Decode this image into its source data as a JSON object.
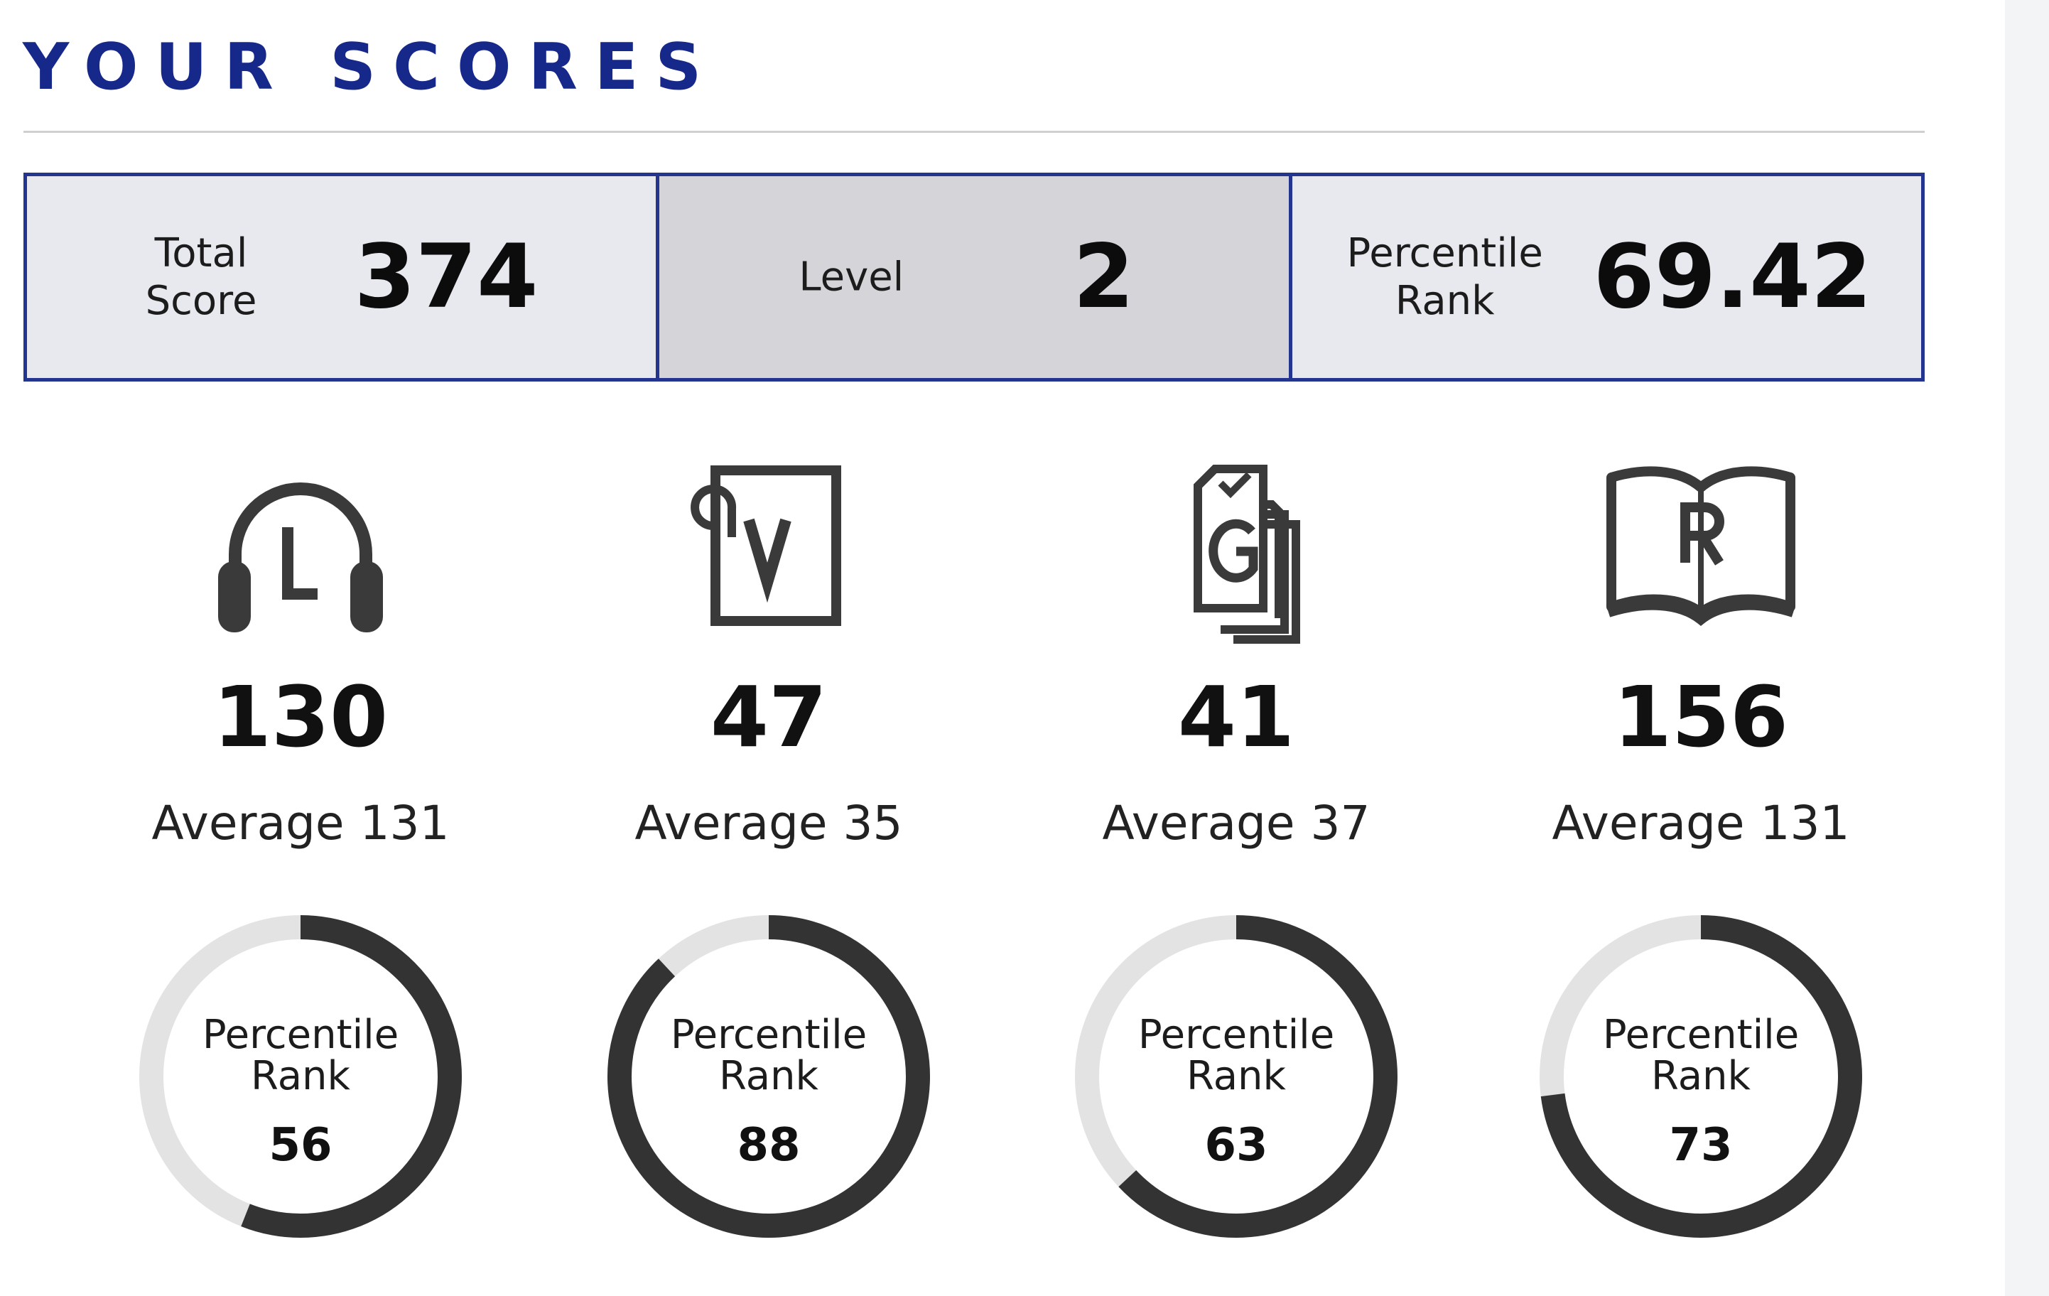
{
  "heading": "YOUR SCORES",
  "summary": {
    "total_score_label": "Total\nScore",
    "total_score_value": "374",
    "level_label": "Level",
    "level_value": "2",
    "percentile_label": "Percentile\nRank",
    "percentile_value": "69.42"
  },
  "sections": [
    {
      "icon": "headphones-l-icon",
      "score": "130",
      "average_label": "Average",
      "average_value": "131",
      "percentile_label": "Percentile\nRank",
      "percentile_value": "56",
      "percentile_fraction": 0.56
    },
    {
      "icon": "document-v-icon",
      "score": "47",
      "average_label": "Average",
      "average_value": "35",
      "percentile_label": "Percentile\nRank",
      "percentile_value": "88",
      "percentile_fraction": 0.88
    },
    {
      "icon": "stacked-pages-g-icon",
      "score": "41",
      "average_label": "Average",
      "average_value": "37",
      "percentile_label": "Percentile\nRank",
      "percentile_value": "63",
      "percentile_fraction": 0.63
    },
    {
      "icon": "open-book-r-icon",
      "score": "156",
      "average_label": "Average",
      "average_value": "131",
      "percentile_label": "Percentile\nRank",
      "percentile_value": "73",
      "percentile_fraction": 0.73
    }
  ],
  "colors": {
    "heading": "#16288a",
    "border": "#23358f",
    "cell_bg": "#e8e8ef",
    "cell_bg_highlight": "#d5d4d9",
    "ring_fill": "#333333",
    "ring_track": "#e3e3e3",
    "icon": "#3a3a3a"
  }
}
